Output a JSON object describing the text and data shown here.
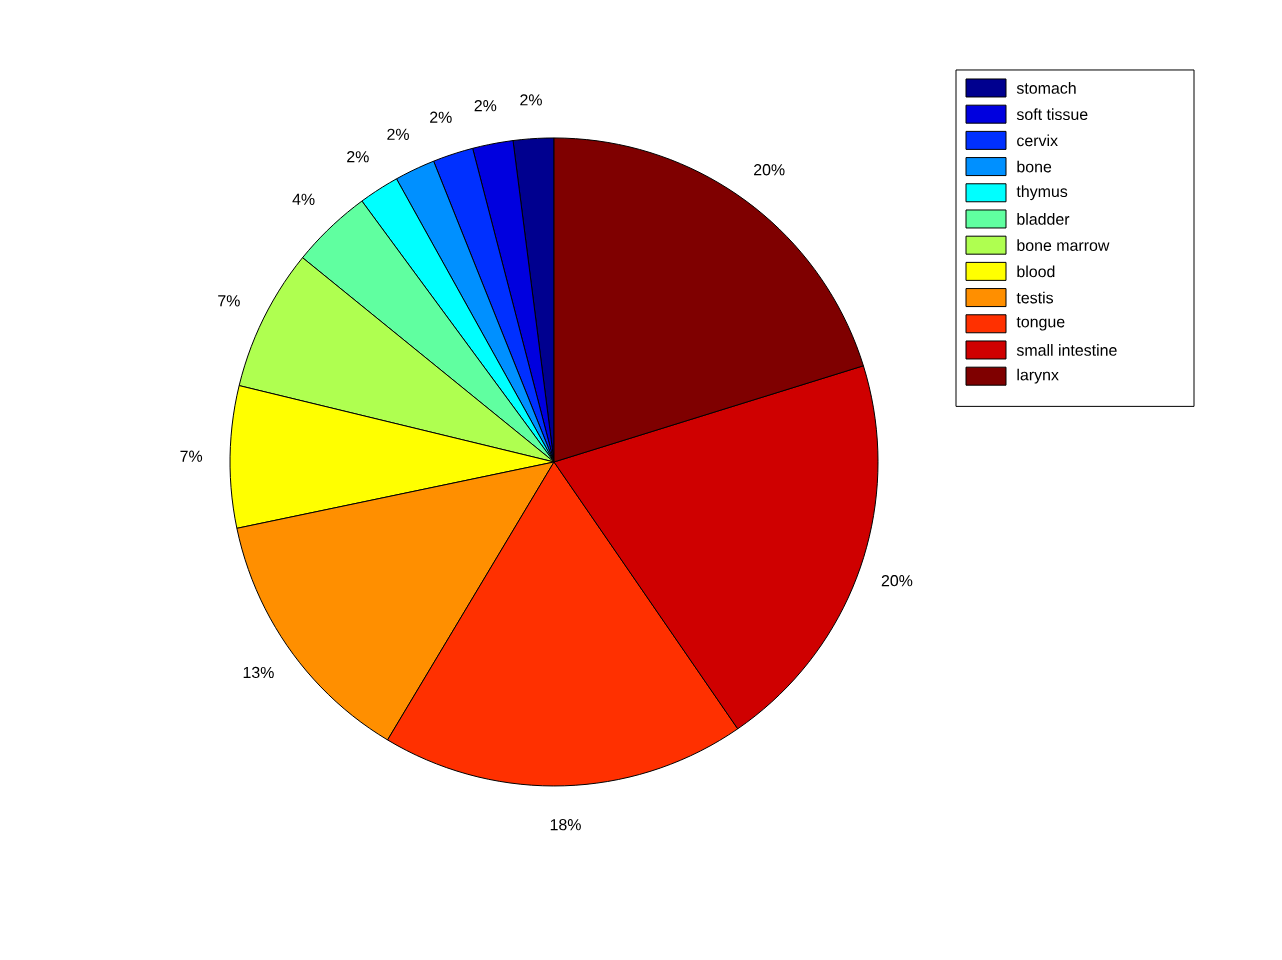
{
  "chart_data": {
    "type": "pie",
    "categories": [
      "stomach",
      "soft tissue",
      "cervix",
      "bone",
      "thymus",
      "bladder",
      "bone marrow",
      "blood",
      "testis",
      "tongue",
      "small intestine",
      "larynx"
    ],
    "values": [
      2,
      2,
      2,
      2,
      2,
      4,
      7,
      7,
      13,
      18,
      20,
      20
    ],
    "value_labels": [
      "2%",
      "2%",
      "2%",
      "2%",
      "2%",
      "4%",
      "7%",
      "7%",
      "13%",
      "18%",
      "20%",
      "20%"
    ],
    "colors": [
      "#00008f",
      "#0000df",
      "#0030ff",
      "#0090ff",
      "#00ffff",
      "#60ffa0",
      "#afff50",
      "#ffff00",
      "#ff8f00",
      "#ff3000",
      "#cf0000",
      "#7f0000"
    ],
    "legend": "top right"
  }
}
